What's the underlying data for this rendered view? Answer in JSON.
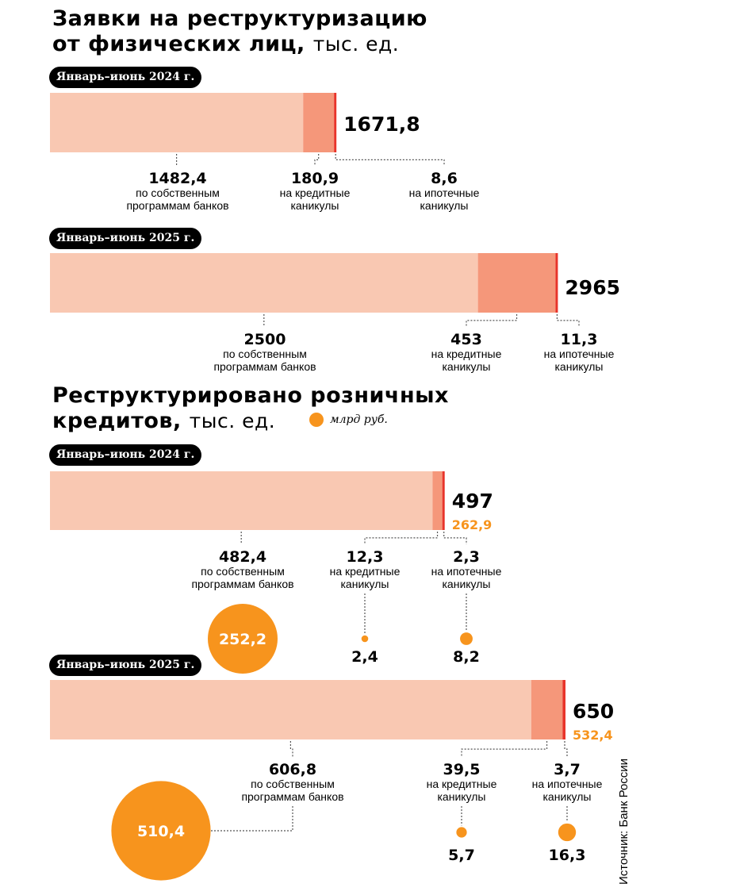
{
  "titles": {
    "t1_line1": "Заявки на реструктуризацию",
    "t1_line2": "от физических лиц,",
    "t1_unit": "тыс. ед.",
    "t2_line1": "Реструктурировано розничных",
    "t2_line2": "кредитов,",
    "t2_unit": "тыс. ед."
  },
  "legend": {
    "label": "млрд руб."
  },
  "source": "Источник: Банк России",
  "colors": {
    "own": "#f9c8b2",
    "credit": "#f5977a",
    "mortgage": "#e8342a",
    "bubble": "#f7941d"
  },
  "chart_data": [
    {
      "type": "bar",
      "title": "Заявки на реструктуризацию от физических лиц, тыс. ед.",
      "categories": [
        "по собственным программам банков",
        "на кредитные каникулы",
        "на ипотечные каникулы"
      ],
      "series": [
        {
          "period": "Январь–июнь 2024 г.",
          "total": "1671,8",
          "values": [
            1482.4,
            180.9,
            8.6
          ],
          "labels": [
            "1482,4",
            "180,9",
            "8,6"
          ]
        },
        {
          "period": "Январь–июнь 2025 г.",
          "total": "2965",
          "values": [
            2500,
            453,
            11.3
          ],
          "labels": [
            "2500",
            "453",
            "11,3"
          ]
        }
      ]
    },
    {
      "type": "bar",
      "title": "Реструктурировано розничных кредитов, тыс. ед.",
      "categories": [
        "по собственным программам банков",
        "на кредитные каникулы",
        "на ипотечные каникулы"
      ],
      "series": [
        {
          "period": "Январь–июнь 2024 г.",
          "total": "497",
          "total_rub": "262,9",
          "values": [
            482.4,
            12.3,
            2.3
          ],
          "labels": [
            "482,4",
            "12,3",
            "2,3"
          ],
          "rub_values": [
            252.2,
            2.4,
            8.2
          ],
          "rub_labels": [
            "252,2",
            "2,4",
            "8,2"
          ]
        },
        {
          "period": "Январь–июнь 2025 г.",
          "total": "650",
          "total_rub": "532,4",
          "values": [
            606.8,
            39.5,
            3.7
          ],
          "labels": [
            "606,8",
            "39,5",
            "3,7"
          ],
          "rub_values": [
            510.4,
            5.7,
            16.3
          ],
          "rub_labels": [
            "510,4",
            "5,7",
            "16,3"
          ]
        }
      ]
    }
  ]
}
